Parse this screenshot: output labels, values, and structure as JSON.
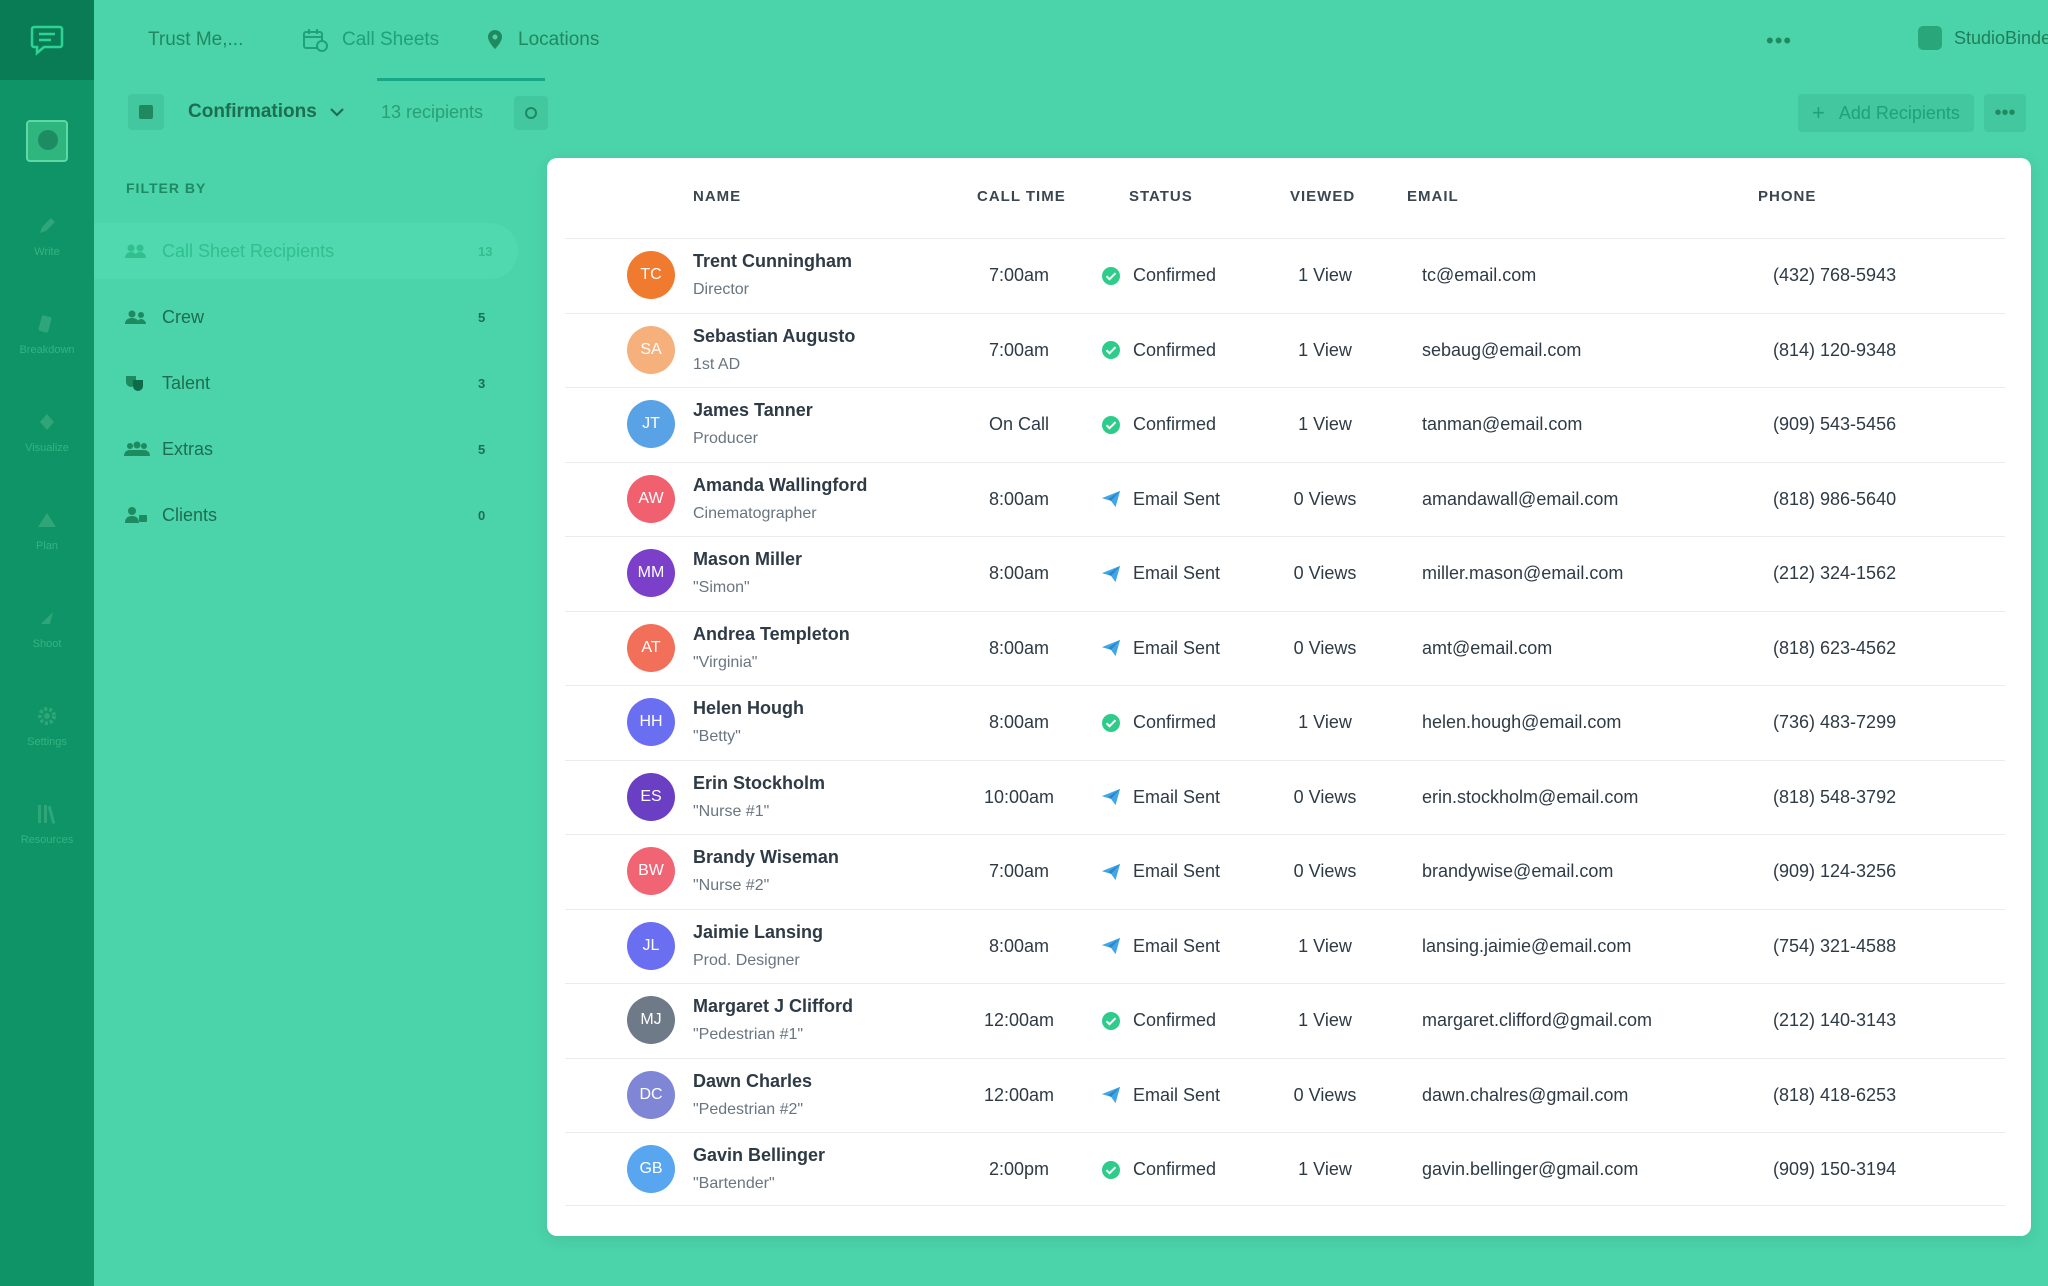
{
  "project_tab": "Trust Me,...",
  "tabs": [
    {
      "label": "Call Sheets",
      "icon": "calendar-icon"
    },
    {
      "label": "Locations",
      "icon": "location-pin-icon"
    }
  ],
  "brand": "StudioBinder",
  "rail": [
    {
      "label": "Write",
      "icon": "pencil-icon"
    },
    {
      "label": "Breakdown",
      "icon": "breakdown-icon"
    },
    {
      "label": "Visualize",
      "icon": "visualize-icon"
    },
    {
      "label": "Plan",
      "icon": "plan-icon"
    },
    {
      "label": "Shoot",
      "icon": "shoot-icon"
    },
    {
      "label": "Settings",
      "icon": "gear-icon"
    },
    {
      "label": "Resources",
      "icon": "books-icon"
    }
  ],
  "toolbar": {
    "dropdown_label": "Confirmations",
    "recipients_label": "13 recipients",
    "add_label": "Add Recipients"
  },
  "filter": {
    "title": "FILTER BY",
    "items": [
      {
        "label": "Call Sheet Recipients",
        "count": "13",
        "icon": "group-icon"
      },
      {
        "label": "Crew",
        "count": "5",
        "icon": "crew-icon"
      },
      {
        "label": "Talent",
        "count": "3",
        "icon": "talent-icon"
      },
      {
        "label": "Extras",
        "count": "5",
        "icon": "extras-icon"
      },
      {
        "label": "Clients",
        "count": "0",
        "icon": "clients-icon"
      }
    ]
  },
  "columns": {
    "name": "NAME",
    "call_time": "CALL TIME",
    "status": "STATUS",
    "viewed": "VIEWED",
    "email": "EMAIL",
    "phone": "PHONE"
  },
  "colors": {
    "confirmed": "#2ecc8a",
    "sent": "#3fa6e8"
  },
  "rows": [
    {
      "initials": "TC",
      "color": "#f07b2e",
      "name": "Trent Cunningham",
      "role": "Director",
      "call_time": "7:00am",
      "status": "Confirmed",
      "viewed": "1 View",
      "email": "tc@email.com",
      "phone": "(432) 768-5943"
    },
    {
      "initials": "SA",
      "color": "#f5b07c",
      "name": "Sebastian Augusto",
      "role": "1st AD",
      "call_time": "7:00am",
      "status": "Confirmed",
      "viewed": "1 View",
      "email": "sebaug@email.com",
      "phone": "(814) 120-9348"
    },
    {
      "initials": "JT",
      "color": "#5aa2e6",
      "name": "James Tanner",
      "role": "Producer",
      "call_time": "On Call",
      "status": "Confirmed",
      "viewed": "1 View",
      "email": "tanman@email.com",
      "phone": "(909) 543-5456"
    },
    {
      "initials": "AW",
      "color": "#f0606e",
      "name": "Amanda Wallingford",
      "role": "Cinematographer",
      "call_time": "8:00am",
      "status": "Email Sent",
      "viewed": "0 Views",
      "email": "amandawall@email.com",
      "phone": "(818) 986-5640"
    },
    {
      "initials": "MM",
      "color": "#7b3fc9",
      "name": "Mason Miller",
      "role": "\"Simon\"",
      "call_time": "8:00am",
      "status": "Email Sent",
      "viewed": "0 Views",
      "email": "miller.mason@email.com",
      "phone": "(212) 324-1562"
    },
    {
      "initials": "AT",
      "color": "#f2705a",
      "name": "Andrea Templeton",
      "role": "\"Virginia\"",
      "call_time": "8:00am",
      "status": "Email Sent",
      "viewed": "0 Views",
      "email": "amt@email.com",
      "phone": "(818) 623-4562"
    },
    {
      "initials": "HH",
      "color": "#6a6ef0",
      "name": "Helen Hough",
      "role": "\"Betty\"",
      "call_time": "8:00am",
      "status": "Confirmed",
      "viewed": "1 View",
      "email": "helen.hough@email.com",
      "phone": "(736) 483-7299"
    },
    {
      "initials": "ES",
      "color": "#6a3fc4",
      "name": "Erin Stockholm",
      "role": "\"Nurse #1\"",
      "call_time": "10:00am",
      "status": "Email Sent",
      "viewed": "0 Views",
      "email": "erin.stockholm@email.com",
      "phone": "(818) 548-3792"
    },
    {
      "initials": "BW",
      "color": "#f06474",
      "name": "Brandy Wiseman",
      "role": "\"Nurse #2\"",
      "call_time": "7:00am",
      "status": "Email Sent",
      "viewed": "0 Views",
      "email": "brandywise@email.com",
      "phone": "(909) 124-3256"
    },
    {
      "initials": "JL",
      "color": "#6a6ef0",
      "name": "Jaimie Lansing",
      "role": "Prod. Designer",
      "call_time": "8:00am",
      "status": "Email Sent",
      "viewed": "1 View",
      "email": "lansing.jaimie@email.com",
      "phone": "(754) 321-4588"
    },
    {
      "initials": "MJ",
      "color": "#6f7a88",
      "name": "Margaret J Clifford",
      "role": "\"Pedestrian #1\"",
      "call_time": "12:00am",
      "status": "Confirmed",
      "viewed": "1 View",
      "email": "margaret.clifford@gmail.com",
      "phone": "(212) 140-3143"
    },
    {
      "initials": "DC",
      "color": "#7f86d6",
      "name": "Dawn Charles",
      "role": "\"Pedestrian #2\"",
      "call_time": "12:00am",
      "status": "Email Sent",
      "viewed": "0 Views",
      "email": "dawn.chalres@gmail.com",
      "phone": "(818) 418-6253"
    },
    {
      "initials": "GB",
      "color": "#58a6f0",
      "name": "Gavin Bellinger",
      "role": "\"Bartender\"",
      "call_time": "2:00pm",
      "status": "Confirmed",
      "viewed": "1 View",
      "email": "gavin.bellinger@gmail.com",
      "phone": "(909) 150-3194"
    }
  ]
}
